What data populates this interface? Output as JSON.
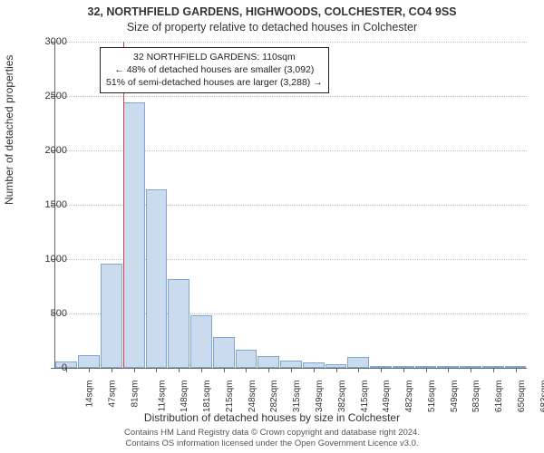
{
  "header": {
    "address": "32, NORTHFIELD GARDENS, HIGHWOODS, COLCHESTER, CO4 9SS",
    "subtitle": "Size of property relative to detached houses in Colchester"
  },
  "axes": {
    "ylabel": "Number of detached properties",
    "xlabel": "Distribution of detached houses by size in Colchester",
    "ylim_max": 3000,
    "ytick_step": 500,
    "yticks": [
      0,
      500,
      1000,
      1500,
      2000,
      2500,
      3000
    ]
  },
  "chart": {
    "type": "histogram",
    "bar_fill": "#c9dbed",
    "bar_border": "#7fa7d1",
    "grid_color": "#bbbbbb",
    "background": "#ffffff",
    "marker_color": "#d23b3b",
    "bins": [
      {
        "label": "14sqm",
        "value": 60
      },
      {
        "label": "47sqm",
        "value": 120
      },
      {
        "label": "81sqm",
        "value": 960
      },
      {
        "label": "114sqm",
        "value": 2440
      },
      {
        "label": "148sqm",
        "value": 1640
      },
      {
        "label": "181sqm",
        "value": 820
      },
      {
        "label": "215sqm",
        "value": 480
      },
      {
        "label": "248sqm",
        "value": 280
      },
      {
        "label": "282sqm",
        "value": 170
      },
      {
        "label": "315sqm",
        "value": 110
      },
      {
        "label": "349sqm",
        "value": 70
      },
      {
        "label": "382sqm",
        "value": 50
      },
      {
        "label": "415sqm",
        "value": 30
      },
      {
        "label": "449sqm",
        "value": 100
      },
      {
        "label": "482sqm",
        "value": 15
      },
      {
        "label": "516sqm",
        "value": 10
      },
      {
        "label": "549sqm",
        "value": 8
      },
      {
        "label": "583sqm",
        "value": 5
      },
      {
        "label": "616sqm",
        "value": 5
      },
      {
        "label": "650sqm",
        "value": 5
      },
      {
        "label": "683sqm",
        "value": 5
      }
    ],
    "marker_bin_index": 3,
    "marker_fraction_into_bin": 0.0
  },
  "info_box": {
    "line1": "32 NORTHFIELD GARDENS: 110sqm",
    "line2": "← 48% of detached houses are smaller (3,092)",
    "line3": "51% of semi-detached houses are larger (3,288) →"
  },
  "footer": {
    "line1": "Contains HM Land Registry data © Crown copyright and database right 2024.",
    "line2": "Contains OS information licensed under the Open Government Licence v3.0."
  },
  "style": {
    "title_fontsize": 12.5,
    "label_fontsize": 12,
    "tick_fontsize": 10,
    "infobox_fontsize": 10.5,
    "footer_fontsize": 9.5
  }
}
